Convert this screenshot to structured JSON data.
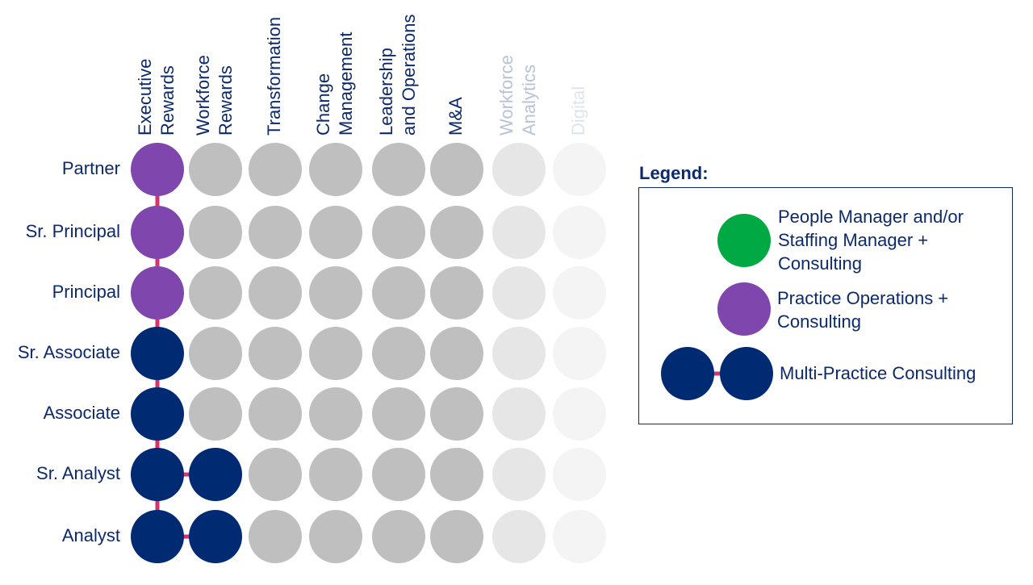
{
  "columns": [
    {
      "lines": [
        "Executive",
        "Rewards"
      ],
      "color": "#0c2a6b"
    },
    {
      "lines": [
        "Workforce",
        "Rewards"
      ],
      "color": "#0c2a6b"
    },
    {
      "lines": [
        "Transformation"
      ],
      "color": "#0c2a6b"
    },
    {
      "lines": [
        "Change",
        "Management"
      ],
      "color": "#0c2a6b"
    },
    {
      "lines": [
        "Leadership",
        "and Operations"
      ],
      "color": "#0c2a6b"
    },
    {
      "lines": [
        "M&A"
      ],
      "color": "#0c2a6b"
    },
    {
      "lines": [
        "Workforce",
        "Analytics"
      ],
      "color": "#b9c3d6"
    },
    {
      "lines": [
        "Digital"
      ],
      "color": "#dfe4ec"
    }
  ],
  "rows": [
    {
      "label": "Partner",
      "cells": [
        "#7f46ad",
        "#bfbfbf",
        "#bfbfbf",
        "#bfbfbf",
        "#bfbfbf",
        "#bfbfbf",
        "#e6e6e6",
        "#f4f4f4"
      ]
    },
    {
      "label": "Sr. Principal",
      "cells": [
        "#7f46ad",
        "#bfbfbf",
        "#bfbfbf",
        "#bfbfbf",
        "#bfbfbf",
        "#bfbfbf",
        "#e6e6e6",
        "#f4f4f4"
      ]
    },
    {
      "label": "Principal",
      "cells": [
        "#7f46ad",
        "#bfbfbf",
        "#bfbfbf",
        "#bfbfbf",
        "#bfbfbf",
        "#bfbfbf",
        "#e6e6e6",
        "#f4f4f4"
      ]
    },
    {
      "label": "Sr. Associate",
      "cells": [
        "#002a72",
        "#bfbfbf",
        "#bfbfbf",
        "#bfbfbf",
        "#bfbfbf",
        "#bfbfbf",
        "#e6e6e6",
        "#f4f4f4"
      ]
    },
    {
      "label": "Associate",
      "cells": [
        "#002a72",
        "#bfbfbf",
        "#bfbfbf",
        "#bfbfbf",
        "#bfbfbf",
        "#bfbfbf",
        "#e6e6e6",
        "#f4f4f4"
      ]
    },
    {
      "label": "Sr. Analyst",
      "cells": [
        "#002a72",
        "#002a72",
        "#bfbfbf",
        "#bfbfbf",
        "#bfbfbf",
        "#bfbfbf",
        "#e6e6e6",
        "#f4f4f4"
      ]
    },
    {
      "label": "Analyst",
      "cells": [
        "#002a72",
        "#002a72",
        "#bfbfbf",
        "#bfbfbf",
        "#bfbfbf",
        "#bfbfbf",
        "#e6e6e6",
        "#f4f4f4"
      ]
    }
  ],
  "legend": {
    "title": "Legend:",
    "items": [
      {
        "lines": [
          "People Manager and/or",
          "Staffing Manager +",
          "Consulting"
        ],
        "color": "#00a944"
      },
      {
        "lines": [
          "Practice Operations +",
          "Consulting"
        ],
        "color": "#7f46ad"
      },
      {
        "lines": [
          "Multi-Practice Consulting"
        ],
        "color": "#002a72"
      }
    ]
  }
}
